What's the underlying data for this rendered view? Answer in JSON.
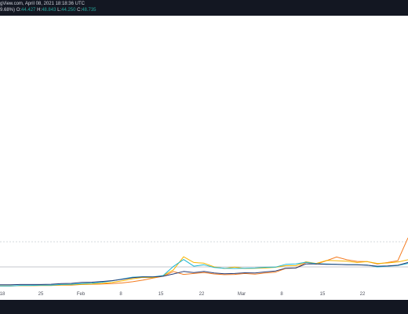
{
  "header": {
    "snapshot_text": "gView.com, April 08, 2021 18:18:36 UTC",
    "change_text": "9.68%)",
    "o_label": "O:",
    "o_value": "44.427",
    "h_label": "H:",
    "h_value": "48.843",
    "l_label": "L:",
    "l_value": "44.250",
    "c_label": "C:",
    "c_value": "48.735"
  },
  "chart_data": {
    "type": "line",
    "x_ticks": [
      "18",
      "25",
      "Feb",
      "8",
      "15",
      "22",
      "Mar",
      "8",
      "15",
      "22"
    ],
    "y_ticks": [],
    "colors": {
      "orange": "#f57c21",
      "yellow": "#f6b500",
      "cyan": "#1ab6d4",
      "navy": "#263a73"
    },
    "series": [
      {
        "color": "#f57c21",
        "values": [
          2,
          2,
          2.1,
          2.1,
          2.2,
          2.2,
          2.3,
          2.3,
          2.6,
          2.7,
          2.8,
          3.0,
          3.3,
          3.8,
          4.5,
          5.4,
          6.2,
          8.3,
          7.0,
          7.4,
          7.8,
          7.2,
          6.9,
          7.0,
          7.4,
          7.1,
          7.6,
          8.0,
          9.6,
          9.8,
          12.2,
          11.5,
          13.0,
          14.6,
          13.4,
          12.7,
          12.6,
          11.6,
          12.2,
          13.0,
          23.0
        ]
      },
      {
        "color": "#f6b500",
        "values": [
          2,
          2,
          2.1,
          2.1,
          2.2,
          2.2,
          2.4,
          2.5,
          2.7,
          2.8,
          3.1,
          3.5,
          4.2,
          5.1,
          5.7,
          5.6,
          6.5,
          9.0,
          14.7,
          12.2,
          11.9,
          10.3,
          9.6,
          10.2,
          9.6,
          9.7,
          9.8,
          10.1,
          10.8,
          10.8,
          12.5,
          11.8,
          13.1,
          13.0,
          12.8,
          12.2,
          12.6,
          11.8,
          12.0,
          12.4,
          13.4
        ]
      },
      {
        "color": "#1ab6d4",
        "values": [
          2,
          2,
          2.2,
          2.2,
          2.3,
          2.3,
          2.6,
          2.7,
          3.0,
          3.2,
          3.6,
          4.2,
          5.0,
          5.8,
          6.0,
          5.9,
          6.5,
          10.5,
          13.5,
          10.6,
          11.2,
          10.0,
          9.7,
          9.6,
          9.7,
          9.8,
          10.1,
          10.2,
          11.4,
          11.6,
          12.3,
          11.7,
          11.6,
          11.4,
          11.3,
          11.2,
          11.1,
          10.3,
          10.6,
          10.9,
          11.8
        ]
      },
      {
        "color": "#263a73",
        "values": [
          2.5,
          2.5,
          2.6,
          2.6,
          2.6,
          2.7,
          3.0,
          3.1,
          3.5,
          3.6,
          3.9,
          4.3,
          4.9,
          5.6,
          5.9,
          5.9,
          6.2,
          7.2,
          8.3,
          7.8,
          8.3,
          7.6,
          7.3,
          7.4,
          7.7,
          7.6,
          8.1,
          8.5,
          9.7,
          9.8,
          11.6,
          11.6,
          11.4,
          11.4,
          11.2,
          11.2,
          11.0,
          10.6,
          10.7,
          11.0,
          12.2
        ]
      }
    ],
    "ylim": [
      0,
      120
    ],
    "grid": false
  }
}
